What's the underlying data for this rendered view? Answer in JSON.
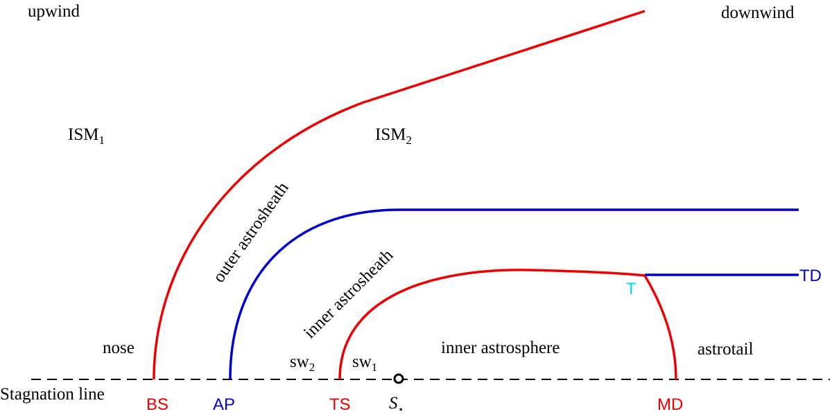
{
  "labels": {
    "upwind": "upwind",
    "downwind": "downwind",
    "ism1": {
      "text": "ISM",
      "sub": "1"
    },
    "ism2": {
      "text": "ISM",
      "sub": "2"
    },
    "outer_astrosheath": "outer astrosheath",
    "inner_astrosheath": "inner astrosheath",
    "nose": "nose",
    "sw2": {
      "text": "sw",
      "sub": "2"
    },
    "sw1": {
      "text": "sw",
      "sub": "1"
    },
    "inner_astrosphere": "inner astrosphere",
    "astrotail": "astrotail",
    "stagnation_line": "Stagnation line",
    "bs": "BS",
    "ap": "AP",
    "ts": "TS",
    "star": {
      "text": "S",
      "sub": "⋆"
    },
    "md": "MD",
    "t": "T",
    "td": "TD"
  }
}
